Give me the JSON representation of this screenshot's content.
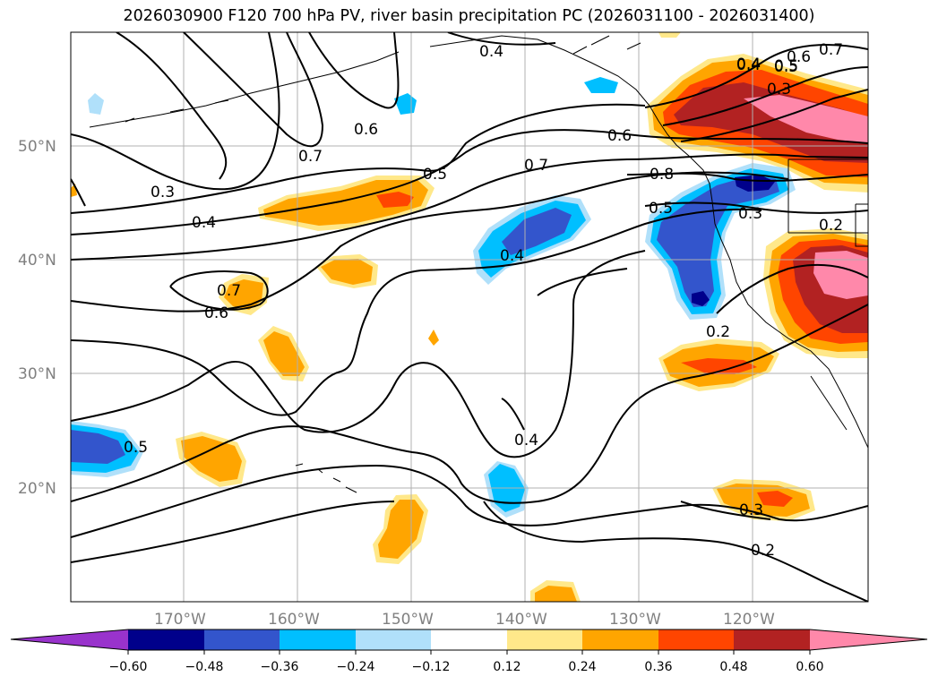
{
  "title": "2026030900 F120 700 hPa PV, river basin precipitation PC (2026031100 - 2026031400)",
  "colors": {
    "neg_060_below": "#9933cc",
    "neg_060_048": "#00008b",
    "neg_048_036": "#3355cc",
    "neg_036_024": "#00bfff",
    "neg_024_012": "#b0e0fa",
    "neutral": "#ffffff",
    "pos_012_024": "#ffe88a",
    "pos_024_036": "#ffa500",
    "pos_036_048": "#ff4500",
    "pos_048_060": "#b22222",
    "pos_060_above": "#ff88aa",
    "gridline": "#b0b0b0",
    "contour": "#000000",
    "axis_label": "#808080"
  },
  "map": {
    "lat_labels": [
      "50°N",
      "40°N",
      "30°N",
      "20°N"
    ],
    "lon_labels": [
      "170°W",
      "160°W",
      "150°W",
      "140°W",
      "130°W",
      "120°W"
    ]
  },
  "contour_labels": [
    "0.4",
    "0.6",
    "0.7",
    "0.3",
    "0.4",
    "0.6",
    "0.7",
    "0.5",
    "0.7",
    "0.6",
    "0.4",
    "0.5",
    "0.7",
    "0.6",
    "0.8",
    "0.5",
    "0.3",
    "0.2",
    "0.5",
    "0.4",
    "0.4",
    "0.3",
    "0.2",
    "0.2",
    "0.4",
    "0.5",
    "0.3"
  ],
  "colorbar": {
    "ticks": [
      "−0.60",
      "−0.48",
      "−0.36",
      "−0.24",
      "−0.12",
      "0.12",
      "0.24",
      "0.36",
      "0.48",
      "0.60"
    ]
  }
}
